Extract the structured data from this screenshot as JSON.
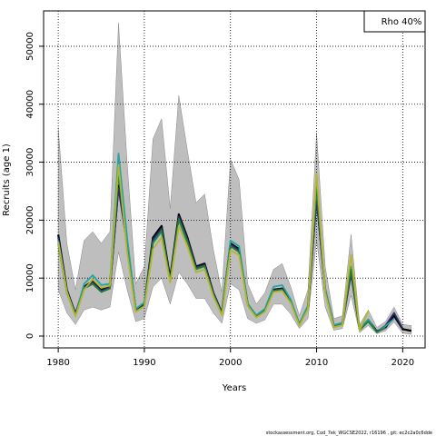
{
  "chart_data": {
    "type": "line",
    "annotation": "Rho 40%",
    "xlabel": "Years",
    "ylabel": "Recruits (age 1)",
    "footer": "stockassessment.org, Cod_7ek_WGCSE2022, r16196 , git: ec2c2a0c6dde",
    "x": [
      1980,
      1981,
      1982,
      1983,
      1984,
      1985,
      1986,
      1987,
      1988,
      1989,
      1990,
      1991,
      1992,
      1993,
      1994,
      1995,
      1996,
      1997,
      1998,
      1999,
      2000,
      2001,
      2002,
      2003,
      2004,
      2005,
      2006,
      2007,
      2008,
      2009,
      2010,
      2011,
      2012,
      2013,
      2014,
      2015,
      2016,
      2017,
      2018,
      2019,
      2020,
      2021
    ],
    "band": {
      "color": "#bebebe",
      "upper": [
        36000,
        16000,
        8000,
        16500,
        18000,
        16000,
        18000,
        54000,
        30000,
        9000,
        12000,
        34000,
        37500,
        22000,
        41500,
        32000,
        23000,
        24500,
        15000,
        7500,
        30500,
        27000,
        9000,
        5500,
        7500,
        11500,
        12500,
        8500,
        3500,
        8000,
        35000,
        12000,
        3000,
        3500,
        17500,
        2000,
        4500,
        1500,
        2500,
        5000,
        2000,
        1800
      ],
      "lower": [
        8000,
        4000,
        2000,
        4500,
        5000,
        4500,
        5000,
        14500,
        8000,
        2500,
        3000,
        8500,
        10000,
        5500,
        11000,
        9000,
        6500,
        6500,
        4000,
        2200,
        9000,
        8000,
        3000,
        2200,
        2800,
        5500,
        5500,
        3800,
        1300,
        3000,
        16500,
        5000,
        1000,
        1300,
        7000,
        600,
        1800,
        400,
        900,
        2400,
        500,
        300
      ]
    },
    "series": [
      {
        "color": "#000000",
        "values": [
          17500,
          8000,
          3800,
          8500,
          9500,
          8000,
          8500,
          26000,
          16000,
          4500,
          5500,
          17000,
          19000,
          10000,
          21000,
          17000,
          12000,
          12500,
          7500,
          4000,
          16000,
          15000,
          5500,
          3500,
          4500,
          8000,
          8200,
          6000,
          2000,
          5000,
          24000,
          8000,
          1800,
          2200,
          11000,
          1200,
          2800,
          800,
          1500,
          3500,
          1200,
          900
        ]
      },
      {
        "color": "#2b2d6e",
        "values": [
          17000,
          7900,
          3700,
          8400,
          9300,
          7800,
          8400,
          25500,
          15800,
          4400,
          5400,
          16600,
          18600,
          9800,
          20600,
          16700,
          11800,
          12300,
          7400,
          3900,
          15800,
          14800,
          5400,
          3400,
          4400,
          7900,
          8100,
          5900,
          1900,
          4900,
          23500,
          7900,
          1700,
          2100,
          10800,
          1100,
          2600,
          700,
          1800,
          4000,
          1300,
          null
        ]
      },
      {
        "color": "#26a3a3",
        "values": [
          16500,
          7700,
          3600,
          9000,
          10500,
          8800,
          9000,
          31500,
          17000,
          4700,
          5800,
          16000,
          18000,
          9500,
          20000,
          16000,
          11500,
          12000,
          7200,
          3800,
          16500,
          15500,
          5600,
          3600,
          4700,
          8500,
          8800,
          6300,
          2100,
          5300,
          25500,
          8200,
          1900,
          2300,
          12000,
          1100,
          2900,
          600,
          1700,
          3000,
          null,
          null
        ]
      },
      {
        "color": "#2a7a3a",
        "values": [
          16000,
          7500,
          3500,
          8200,
          9000,
          7600,
          8200,
          28000,
          15000,
          4300,
          5200,
          16200,
          18200,
          9600,
          20200,
          16300,
          11600,
          12100,
          7100,
          3700,
          15500,
          14500,
          5300,
          3300,
          4300,
          7800,
          8000,
          5800,
          1900,
          4800,
          26000,
          7700,
          1600,
          2000,
          11500,
          1000,
          2500,
          700,
          1400,
          null,
          null,
          null
        ]
      },
      {
        "color": "#b5b52e",
        "values": [
          16200,
          7600,
          3400,
          8000,
          9800,
          8300,
          8700,
          29500,
          14500,
          4200,
          5100,
          15000,
          17000,
          9200,
          19000,
          15500,
          11000,
          11500,
          6900,
          3600,
          14800,
          14000,
          5200,
          3200,
          4200,
          7600,
          7800,
          5700,
          1800,
          4700,
          28000,
          7500,
          1500,
          1900,
          14000,
          1000,
          4300,
          null,
          null,
          null,
          null,
          null
        ]
      }
    ],
    "xlim": [
      1978.3,
      2022.6
    ],
    "ylim": [
      -2040,
      56100
    ],
    "xticks": [
      1980,
      1990,
      2000,
      2010,
      2020
    ],
    "yticks": [
      0,
      10000,
      20000,
      30000,
      40000,
      50000
    ],
    "grid": true
  }
}
